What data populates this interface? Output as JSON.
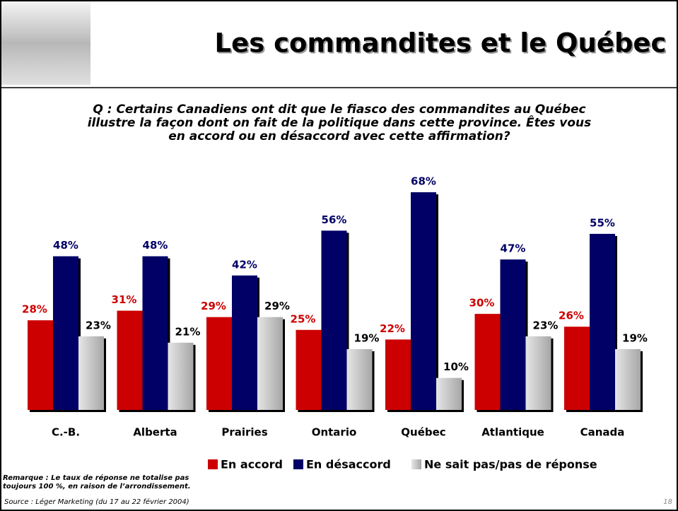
{
  "chart_data": {
    "type": "bar",
    "title": "Les commandites et le Québec",
    "subtitle": "Q : Certains Canadiens ont dit que le fiasco des commandites au Québec illustre la façon dont on fait de la politique dans cette province. Êtes vous en accord ou en désaccord avec cette affirmation?",
    "categories": [
      "C.-B.",
      "Alberta",
      "Prairies",
      "Ontario",
      "Québec",
      "Atlantique",
      "Canada"
    ],
    "series": [
      {
        "name": "En accord",
        "color": "#cc0000",
        "values": [
          28,
          31,
          29,
          25,
          22,
          30,
          26
        ],
        "value_labels": [
          "28%",
          "31%",
          "29%",
          "25%",
          "22%",
          "30%",
          "26%"
        ]
      },
      {
        "name": "En désaccord",
        "color": "#000066",
        "values": [
          48,
          48,
          42,
          56,
          68,
          47,
          55
        ],
        "value_labels": [
          "48%",
          "48%",
          "42%",
          "56%",
          "68%",
          "47%",
          "55%"
        ]
      },
      {
        "name": "Ne sait pas/pas de réponse",
        "color": "#bfbfbf",
        "values": [
          23,
          21,
          29,
          19,
          10,
          23,
          19
        ],
        "value_labels": [
          "23%",
          "21%",
          "29%",
          "19%",
          "10%",
          "23%",
          "19%"
        ]
      }
    ],
    "note": "Remarque : Le taux de réponse ne totalise pas toujours 100 %, en raison de l’arrondissement.",
    "source": "Source : Léger Marketing (du 17 au 22 février 2004)",
    "page_number": "18"
  }
}
